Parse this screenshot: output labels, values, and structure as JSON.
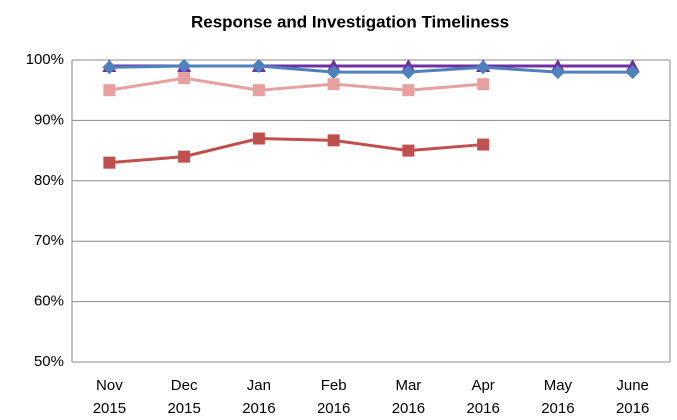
{
  "chart_data": {
    "type": "line",
    "title": "Response and Investigation Timeliness",
    "categories": [
      "Nov 2015",
      "Dec 2015",
      "Jan 2016",
      "Feb 2016",
      "Mar 2016",
      "Apr 2016",
      "May 2016",
      "June 2016"
    ],
    "series": [
      {
        "color": "#7030a0",
        "marker": "triangle",
        "values": [
          99,
          99,
          99,
          99,
          99,
          99,
          99,
          99
        ]
      },
      {
        "color": "#4f81bd",
        "marker": "diamond",
        "values": [
          98.8,
          99,
          99,
          98,
          98,
          98.8,
          98,
          98
        ]
      },
      {
        "color": "#e6a0a0",
        "marker": "square",
        "values": [
          95,
          97,
          95,
          96,
          95,
          96,
          null,
          null
        ]
      },
      {
        "color": "#c0504d",
        "marker": "square",
        "values": [
          83,
          84,
          87,
          86.7,
          85,
          86,
          null,
          null
        ]
      }
    ],
    "ylim": [
      50,
      100
    ],
    "yticks": [
      {
        "value": 50,
        "label": "50%"
      },
      {
        "value": 60,
        "label": "60%"
      },
      {
        "value": 70,
        "label": "70%"
      },
      {
        "value": 80,
        "label": "80%"
      },
      {
        "value": 90,
        "label": "90%"
      },
      {
        "value": 100,
        "label": "100%"
      }
    ],
    "grid": true
  }
}
